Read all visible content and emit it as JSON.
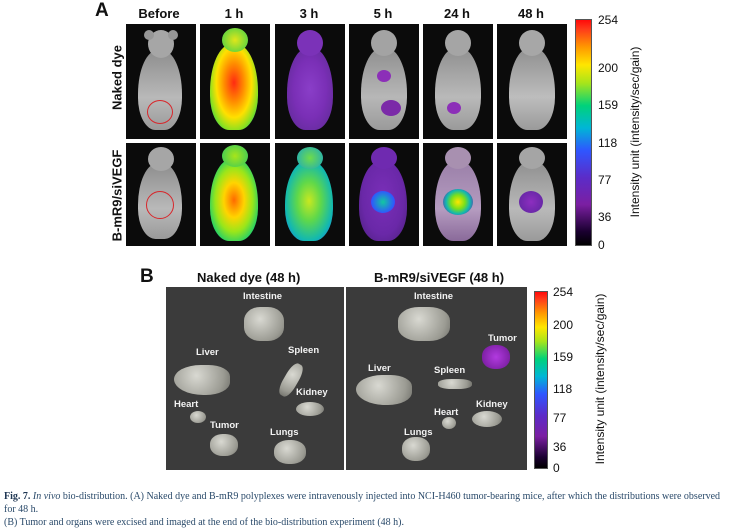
{
  "panelA": {
    "letter": "A",
    "columns": [
      "Before",
      "1 h",
      "3 h",
      "5 h",
      "24 h",
      "48 h"
    ],
    "rows": [
      "Naked dye",
      "B-mR9/siVEGF"
    ],
    "colorbar": {
      "ticks": [
        "254",
        "200",
        "159",
        "118",
        "77",
        "36",
        "0"
      ],
      "title": "Intensity unit (intensity/sec/gain)"
    }
  },
  "panelB": {
    "letter": "B",
    "left_title": "Naked dye (48 h)",
    "right_title": "B-mR9/siVEGF (48 h)",
    "left_organs": [
      "Intestine",
      "Liver",
      "Spleen",
      "Heart",
      "Kidney",
      "Tumor",
      "Lungs"
    ],
    "right_organs": [
      "Intestine",
      "Tumor",
      "Liver",
      "Spleen",
      "Heart",
      "Kidney",
      "Lungs"
    ],
    "colorbar": {
      "ticks": [
        "254",
        "200",
        "159",
        "118",
        "77",
        "36",
        "0"
      ],
      "title": "Intensity unit (intensity/sec/gain)"
    }
  },
  "caption": {
    "label": "Fig. 7.",
    "italic": "In vivo",
    "line1_rest": " bio-distribution. (A) Naked dye and B-mR9 polyplexes were intravenously injected into NCI-H460 tumor-bearing mice, after which the distributions were observed for 48 h.",
    "line2": "(B) Tumor and organs were excised and imaged at the end of the bio-distribution experiment (48 h)."
  },
  "colors": {
    "background": "#0b0b0b",
    "tumor_ring": "#d8262b",
    "caption_text": "#2a4a6a"
  }
}
